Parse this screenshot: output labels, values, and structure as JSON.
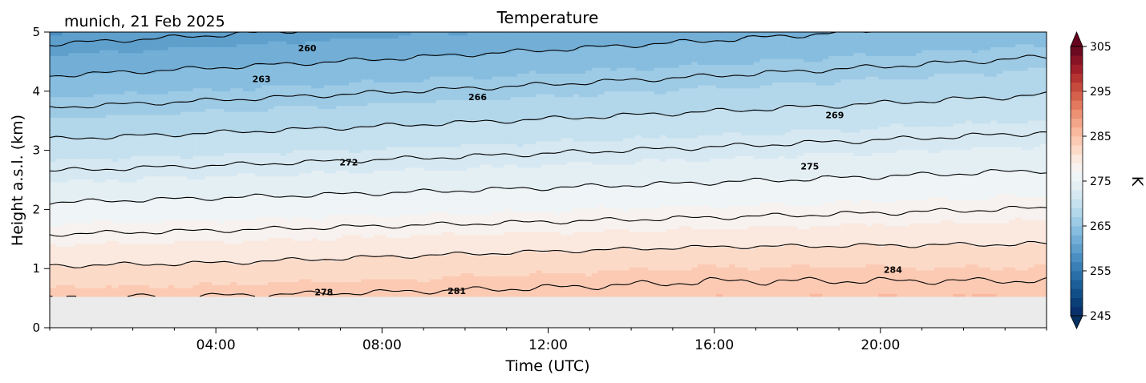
{
  "chart_data": {
    "type": "heatmap",
    "title": "Temperature",
    "subtitle": "munich, 21 Feb 2025",
    "xlabel": "Time (UTC)",
    "ylabel": "Height a.s.l. (km)",
    "x_ticks": [
      "04:00",
      "08:00",
      "12:00",
      "16:00",
      "20:00"
    ],
    "x_tick_hours": [
      4,
      8,
      12,
      16,
      20
    ],
    "x_range_hours": [
      0,
      24
    ],
    "y_ticks": [
      "0",
      "1",
      "2",
      "3",
      "4",
      "5"
    ],
    "ylim": [
      0,
      5
    ],
    "data_y_range_km": [
      0.53,
      5.0
    ],
    "colorbar": {
      "label": "K",
      "ticks": [
        "245",
        "255",
        "265",
        "275",
        "285",
        "295",
        "305"
      ],
      "range": [
        245,
        305
      ],
      "step": 2,
      "colors": [
        "#08306b",
        "#0b3f78",
        "#114f89",
        "#1c5f98",
        "#2a6fa8",
        "#3a7fb6",
        "#4b8fc2",
        "#5e9fcc",
        "#72aed6",
        "#87bddf",
        "#9dcae5",
        "#b2d6ea",
        "#c5e0ee",
        "#d6e8f1",
        "#e4eff4",
        "#eff4f6",
        "#f7f2ef",
        "#fbe8de",
        "#fcdac8",
        "#fccab3",
        "#f9b99e",
        "#f4a68a",
        "#ec9174",
        "#e2795f",
        "#d5604c",
        "#c64a3d",
        "#b53331",
        "#a01f2a",
        "#881325",
        "#6b0a20"
      ]
    },
    "contour_labels": [
      {
        "value": "260",
        "time_h": 6.2,
        "height_km": 4.73
      },
      {
        "value": "263",
        "time_h": 5.1,
        "height_km": 4.21
      },
      {
        "value": "266",
        "time_h": 10.3,
        "height_km": 3.9
      },
      {
        "value": "269",
        "time_h": 18.9,
        "height_km": 3.6
      },
      {
        "value": "272",
        "time_h": 7.2,
        "height_km": 2.8
      },
      {
        "value": "275",
        "time_h": 18.3,
        "height_km": 2.73
      },
      {
        "value": "278",
        "time_h": 6.6,
        "height_km": 0.6
      },
      {
        "value": "281",
        "time_h": 9.8,
        "height_km": 0.62
      },
      {
        "value": "284",
        "time_h": 20.3,
        "height_km": 0.98
      }
    ]
  }
}
